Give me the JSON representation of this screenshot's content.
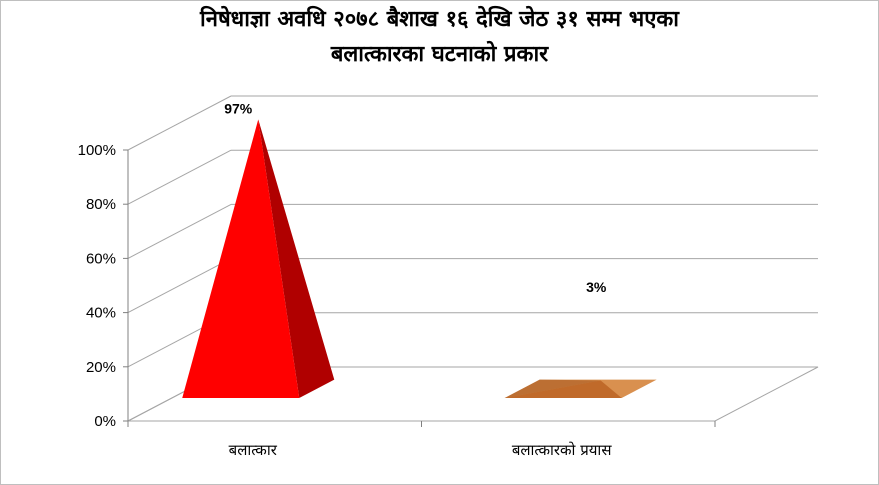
{
  "chart_data": {
    "type": "bar",
    "bar_shape": "pyramid",
    "title_lines": [
      "निषेधाज्ञा अवधि २०७८ बैशाख १६ देखि जेठ ३१ सम्म भएका",
      "बलात्कारका घटनाको प्रकार"
    ],
    "categories": [
      "बलात्कार",
      "बलात्कारको प्रयास"
    ],
    "values": [
      97,
      3
    ],
    "data_labels": [
      "97%",
      "3%"
    ],
    "y_ticks": [
      "0%",
      "20%",
      "40%",
      "60%",
      "80%",
      "100%"
    ],
    "ylim": [
      0,
      100
    ],
    "grid": true,
    "colors": {
      "bar1_front": "#ff0000",
      "bar1_side": "#b00000",
      "bar2_front": "#c06a2a",
      "bar2_top": "#d9904f"
    }
  }
}
